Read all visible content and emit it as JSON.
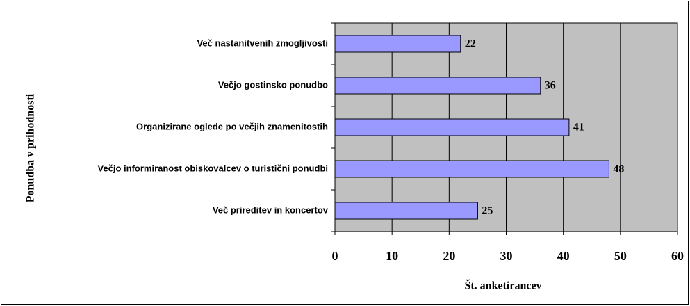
{
  "chart_data": {
    "type": "bar",
    "orientation": "horizontal",
    "categories": [
      "Več nastanitvenih zmogljivosti",
      "Večjo gostinsko ponudbo",
      "Organizirane oglede po večjih znamenitostih",
      "Večjo informiranost obiskovalcev o turistični ponudbi",
      "Več prireditev in koncertov"
    ],
    "values": [
      22,
      36,
      41,
      48,
      25
    ],
    "color": "#9999ff",
    "plot_background": "#c0c0c0",
    "xlim": [
      0,
      60
    ],
    "xticks": [
      0,
      10,
      20,
      30,
      40,
      50,
      60
    ],
    "grid": true,
    "xlabel": "Št. anketirancev",
    "ylabel": "Ponudba v prihodnosti"
  }
}
